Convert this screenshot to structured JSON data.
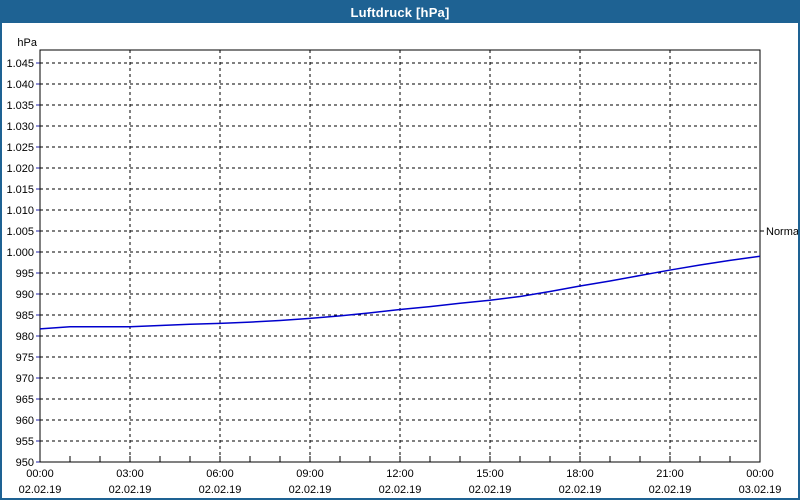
{
  "window": {
    "title": "Luftdruck [hPa]",
    "title_bar_color": "#1e6293",
    "border_color": "#1e6293",
    "background": "#ffffff"
  },
  "chart_data": {
    "type": "line",
    "title": "Luftdruck [hPa]",
    "unit_label": "hPa",
    "grid": "dashed",
    "grid_color": "#000000",
    "axis_color": "#000000",
    "y_tick_mark_color": "#2222aa",
    "ylim": [
      950,
      1048
    ],
    "xlim_hours": [
      0,
      24
    ],
    "y_ticks": {
      "values": [
        950,
        955,
        960,
        965,
        970,
        975,
        980,
        985,
        990,
        995,
        1000,
        1005,
        1010,
        1015,
        1020,
        1025,
        1030,
        1035,
        1040,
        1045
      ],
      "labels": [
        "950",
        "955",
        "960",
        "965",
        "970",
        "975",
        "980",
        "985",
        "990",
        "995",
        "1.000",
        "1.005",
        "1.010",
        "1.015",
        "1.020",
        "1.025",
        "1.030",
        "1.035",
        "1.040",
        "1.045"
      ]
    },
    "x_ticks": [
      {
        "hour": 0,
        "time": "00:00",
        "date": "02.02.19"
      },
      {
        "hour": 3,
        "time": "03:00",
        "date": "02.02.19"
      },
      {
        "hour": 6,
        "time": "06:00",
        "date": "02.02.19"
      },
      {
        "hour": 9,
        "time": "09:00",
        "date": "02.02.19"
      },
      {
        "hour": 12,
        "time": "12:00",
        "date": "02.02.19"
      },
      {
        "hour": 15,
        "time": "15:00",
        "date": "02.02.19"
      },
      {
        "hour": 18,
        "time": "18:00",
        "date": "02.02.19"
      },
      {
        "hour": 21,
        "time": "21:00",
        "date": "02.02.19"
      },
      {
        "hour": 24,
        "time": "00:00",
        "date": "03.02.19"
      }
    ],
    "minor_x_tick_every_hours": 1,
    "series": [
      {
        "name": "Luftdruck",
        "color": "#0000cd",
        "x_hours": [
          0,
          1,
          2,
          3,
          4,
          5,
          6,
          7,
          8,
          9,
          10,
          11,
          12,
          13,
          14,
          15,
          16,
          17,
          18,
          19,
          20,
          21,
          22,
          23,
          24
        ],
        "values": [
          981.7,
          982.2,
          982.2,
          982.2,
          982.5,
          982.8,
          983.0,
          983.3,
          983.7,
          984.2,
          984.8,
          985.5,
          986.3,
          987.0,
          987.8,
          988.5,
          989.4,
          990.6,
          991.9,
          993.1,
          994.4,
          995.7,
          996.9,
          998.0,
          999.0
        ]
      }
    ],
    "annotations": [
      {
        "label": "Normal",
        "value": 1005,
        "side": "right"
      }
    ]
  }
}
